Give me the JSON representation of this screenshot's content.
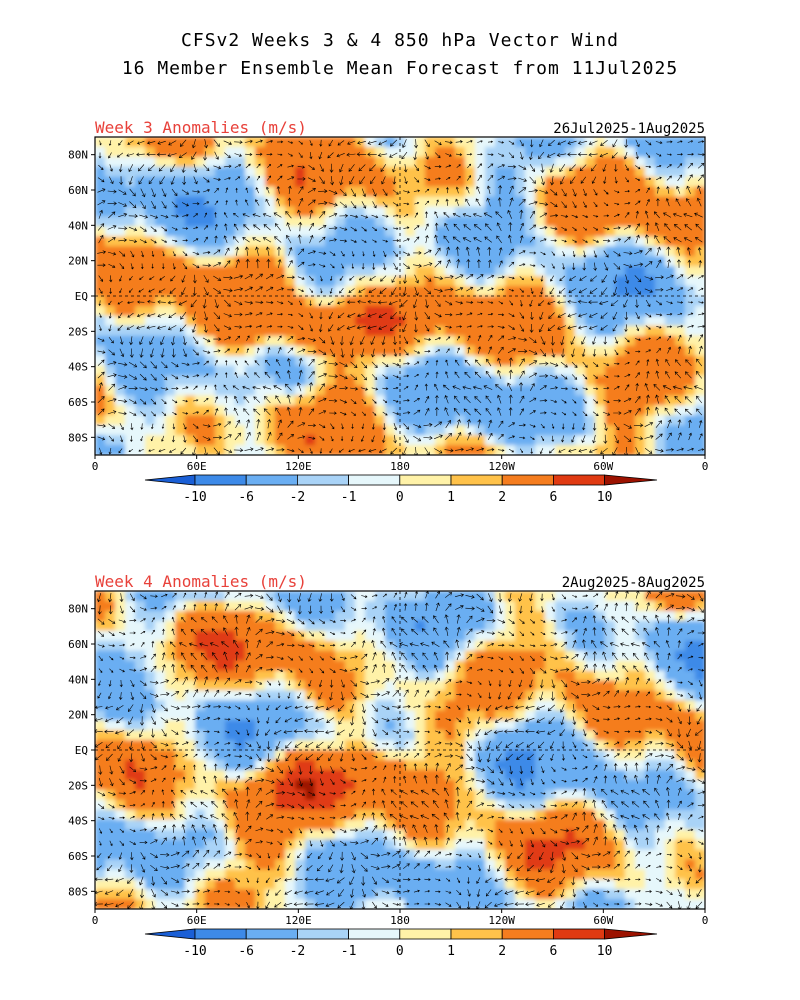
{
  "header": {
    "line1": "CFSv2 Weeks 3 & 4 850 hPa Vector Wind",
    "line2": "16 Member Ensemble Mean Forecast from 11Jul2025"
  },
  "panels": [
    {
      "label": "Week 3 Anomalies (m/s)",
      "dates": "26Jul2025-1Aug2025"
    },
    {
      "label": "Week 4 Anomalies (m/s)",
      "dates": "2Aug2025-8Aug2025"
    }
  ],
  "axes": {
    "lat_labels": [
      "80N",
      "60N",
      "40N",
      "20N",
      "EQ",
      "20S",
      "40S",
      "60S",
      "80S"
    ],
    "lat_values": [
      80,
      60,
      40,
      20,
      0,
      -20,
      -40,
      -60,
      -80
    ],
    "lon_labels": [
      "0",
      "60E",
      "120E",
      "180",
      "120W",
      "60W",
      "0"
    ],
    "lon_values": [
      0,
      60,
      120,
      180,
      240,
      300,
      360
    ],
    "lat_range": [
      -90,
      90
    ],
    "lon_range": [
      0,
      360
    ]
  },
  "colorbar": {
    "labels": [
      "-10",
      "-6",
      "-2",
      "-1",
      "0",
      "1",
      "2",
      "6",
      "10"
    ],
    "colors": [
      "#1a5fd6",
      "#3d8ae8",
      "#6aaef2",
      "#a9d3f7",
      "#e6f7fb",
      "#fff2a8",
      "#ffc24a",
      "#f57d1f",
      "#e03a12",
      "#9c1200"
    ]
  },
  "colors": {
    "title_red": "#e8413a"
  }
}
